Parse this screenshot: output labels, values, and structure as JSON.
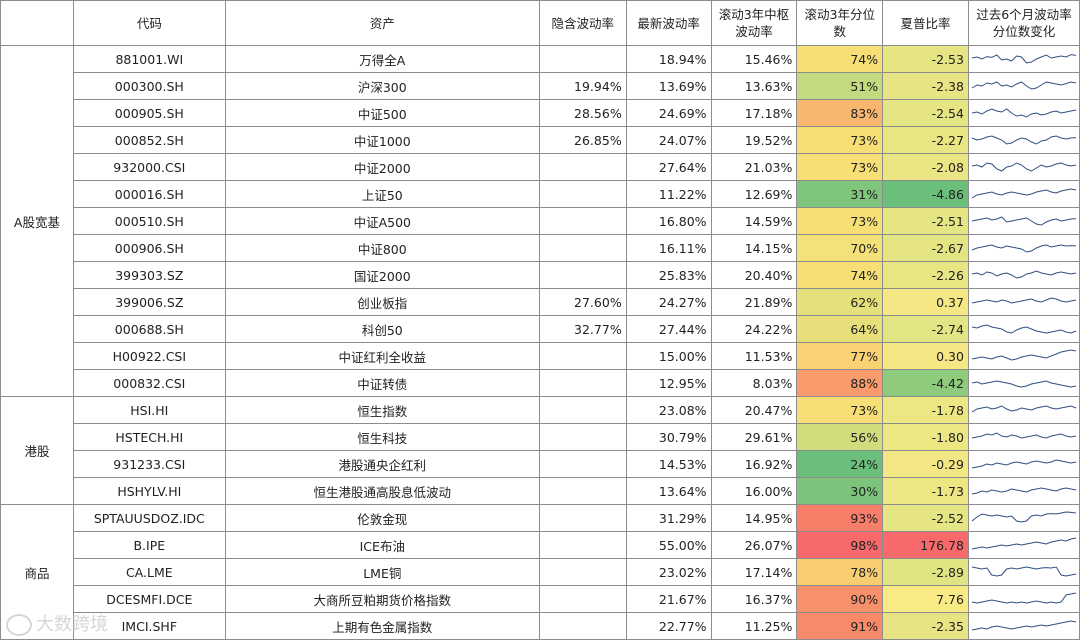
{
  "headers": {
    "group": "",
    "code": "代码",
    "asset": "资产",
    "implied_vol": "隐含波动率",
    "latest_vol": "最新波动率",
    "rolling_center_vol": "滚动3年中枢波动率",
    "rolling_pct": "滚动3年分位数",
    "sharpe": "夏普比率",
    "past6m": "过去6个月波动率分位数变化"
  },
  "groups": [
    {
      "label": "A股宽基",
      "count": 13
    },
    {
      "label": "港股",
      "count": 4
    },
    {
      "label": "商品",
      "count": 5
    }
  ],
  "rows": [
    {
      "code": "881001.WI",
      "asset": "万得全A",
      "implied": "",
      "latest": "18.94%",
      "center": "15.46%",
      "pct": "74%",
      "pct_color": "#f7df76",
      "sharpe": "-2.53",
      "sharpe_color": "#e6e583"
    },
    {
      "code": "000300.SH",
      "asset": "沪深300",
      "implied": "19.94%",
      "latest": "13.69%",
      "center": "13.63%",
      "pct": "51%",
      "pct_color": "#c4da7e",
      "sharpe": "-2.38",
      "sharpe_color": "#e7e583"
    },
    {
      "code": "000905.SH",
      "asset": "中证500",
      "implied": "28.56%",
      "latest": "24.69%",
      "center": "17.18%",
      "pct": "83%",
      "pct_color": "#f9b66e",
      "sharpe": "-2.54",
      "sharpe_color": "#e6e583"
    },
    {
      "code": "000852.SH",
      "asset": "中证1000",
      "implied": "26.85%",
      "latest": "24.07%",
      "center": "19.52%",
      "pct": "73%",
      "pct_color": "#f7df76",
      "sharpe": "-2.27",
      "sharpe_color": "#e8e583"
    },
    {
      "code": "932000.CSI",
      "asset": "中证2000",
      "implied": "",
      "latest": "27.64%",
      "center": "21.03%",
      "pct": "73%",
      "pct_color": "#f7df76",
      "sharpe": "-2.08",
      "sharpe_color": "#eae583"
    },
    {
      "code": "000016.SH",
      "asset": "上证50",
      "implied": "",
      "latest": "11.22%",
      "center": "12.69%",
      "pct": "31%",
      "pct_color": "#7fc57c",
      "sharpe": "-4.86",
      "sharpe_color": "#6abf7b"
    },
    {
      "code": "000510.SH",
      "asset": "中证A500",
      "implied": "",
      "latest": "16.80%",
      "center": "14.59%",
      "pct": "73%",
      "pct_color": "#f7df76",
      "sharpe": "-2.51",
      "sharpe_color": "#e6e583"
    },
    {
      "code": "000906.SH",
      "asset": "中证800",
      "implied": "",
      "latest": "16.11%",
      "center": "14.15%",
      "pct": "70%",
      "pct_color": "#f4e279",
      "sharpe": "-2.67",
      "sharpe_color": "#e4e483"
    },
    {
      "code": "399303.SZ",
      "asset": "国证2000",
      "implied": "",
      "latest": "25.83%",
      "center": "20.40%",
      "pct": "74%",
      "pct_color": "#f7df76",
      "sharpe": "-2.26",
      "sharpe_color": "#e8e583"
    },
    {
      "code": "399006.SZ",
      "asset": "创业板指",
      "implied": "27.60%",
      "latest": "24.27%",
      "center": "21.89%",
      "pct": "62%",
      "pct_color": "#e4e07a",
      "sharpe": "0.37",
      "sharpe_color": "#f5e784"
    },
    {
      "code": "000688.SH",
      "asset": "科创50",
      "implied": "32.77%",
      "latest": "27.44%",
      "center": "24.22%",
      "pct": "64%",
      "pct_color": "#e7e07a",
      "sharpe": "-2.74",
      "sharpe_color": "#e3e483"
    },
    {
      "code": "H00922.CSI",
      "asset": "中证红利全收益",
      "implied": "",
      "latest": "15.00%",
      "center": "11.53%",
      "pct": "77%",
      "pct_color": "#f8d273",
      "sharpe": "0.30",
      "sharpe_color": "#f5e784"
    },
    {
      "code": "000832.CSI",
      "asset": "中证转债",
      "implied": "",
      "latest": "12.95%",
      "center": "8.03%",
      "pct": "88%",
      "pct_color": "#f99b6b",
      "sharpe": "-4.42",
      "sharpe_color": "#8fcb7d"
    },
    {
      "code": "HSI.HI",
      "asset": "恒生指数",
      "implied": "",
      "latest": "23.08%",
      "center": "20.47%",
      "pct": "73%",
      "pct_color": "#f7df76",
      "sharpe": "-1.78",
      "sharpe_color": "#ece683"
    },
    {
      "code": "HSTECH.HI",
      "asset": "恒生科技",
      "implied": "",
      "latest": "30.79%",
      "center": "29.61%",
      "pct": "56%",
      "pct_color": "#d3dc7d",
      "sharpe": "-1.80",
      "sharpe_color": "#ece683"
    },
    {
      "code": "931233.CSI",
      "asset": "港股通央企红利",
      "implied": "",
      "latest": "14.53%",
      "center": "16.92%",
      "pct": "24%",
      "pct_color": "#6abf7b",
      "sharpe": "-0.29",
      "sharpe_color": "#f2e784"
    },
    {
      "code": "HSHYLV.HI",
      "asset": "恒生港股通高股息低波动",
      "implied": "",
      "latest": "13.64%",
      "center": "16.00%",
      "pct": "30%",
      "pct_color": "#7cc47c",
      "sharpe": "-1.73",
      "sharpe_color": "#ece683"
    },
    {
      "code": "SPTAUUSDOZ.IDC",
      "asset": "伦敦金现",
      "implied": "",
      "latest": "31.29%",
      "center": "14.95%",
      "pct": "93%",
      "pct_color": "#f77f69",
      "sharpe": "-2.52",
      "sharpe_color": "#e6e583"
    },
    {
      "code": "B.IPE",
      "asset": "ICE布油",
      "implied": "",
      "latest": "55.00%",
      "center": "26.07%",
      "pct": "98%",
      "pct_color": "#f8696b",
      "sharpe": "176.78",
      "sharpe_color": "#f8696b"
    },
    {
      "code": "CA.LME",
      "asset": "LME铜",
      "implied": "",
      "latest": "23.02%",
      "center": "17.14%",
      "pct": "78%",
      "pct_color": "#f8cd72",
      "sharpe": "-2.89",
      "sharpe_color": "#e1e483"
    },
    {
      "code": "DCESMFI.DCE",
      "asset": "大商所豆粕期货价格指数",
      "implied": "",
      "latest": "21.67%",
      "center": "16.37%",
      "pct": "90%",
      "pct_color": "#f8906b",
      "sharpe": "7.76",
      "sharpe_color": "#f9eb84"
    },
    {
      "code": "IMCI.SHF",
      "asset": "上期有色金属指数",
      "implied": "",
      "latest": "22.77%",
      "center": "11.25%",
      "pct": "91%",
      "pct_color": "#f88a6a",
      "sharpe": "-2.35",
      "sharpe_color": "#e7e583"
    }
  ],
  "sparklines": [
    [
      0.55,
      0.6,
      0.5,
      0.62,
      0.58,
      0.7,
      0.45,
      0.5,
      0.4,
      0.65,
      0.6,
      0.3,
      0.35,
      0.5,
      0.6,
      0.7,
      0.55,
      0.6,
      0.65,
      0.6,
      0.72,
      0.68
    ],
    [
      0.4,
      0.55,
      0.5,
      0.65,
      0.6,
      0.7,
      0.5,
      0.55,
      0.45,
      0.6,
      0.7,
      0.5,
      0.35,
      0.4,
      0.55,
      0.7,
      0.65,
      0.6,
      0.55,
      0.62,
      0.7,
      0.65
    ],
    [
      0.5,
      0.55,
      0.45,
      0.6,
      0.7,
      0.6,
      0.55,
      0.7,
      0.5,
      0.35,
      0.4,
      0.3,
      0.45,
      0.5,
      0.4,
      0.45,
      0.55,
      0.6,
      0.5,
      0.55,
      0.6,
      0.65
    ],
    [
      0.6,
      0.5,
      0.55,
      0.65,
      0.7,
      0.6,
      0.5,
      0.3,
      0.35,
      0.5,
      0.6,
      0.55,
      0.4,
      0.3,
      0.45,
      0.5,
      0.65,
      0.7,
      0.6,
      0.55,
      0.6,
      0.62
    ],
    [
      0.55,
      0.6,
      0.5,
      0.7,
      0.65,
      0.4,
      0.3,
      0.5,
      0.55,
      0.7,
      0.6,
      0.4,
      0.3,
      0.45,
      0.6,
      0.5,
      0.55,
      0.65,
      0.7,
      0.6,
      0.55,
      0.6
    ],
    [
      0.3,
      0.45,
      0.5,
      0.55,
      0.6,
      0.5,
      0.45,
      0.55,
      0.6,
      0.55,
      0.5,
      0.45,
      0.5,
      0.6,
      0.65,
      0.7,
      0.6,
      0.55,
      0.65,
      0.7,
      0.75,
      0.7
    ],
    [
      0.5,
      0.55,
      0.6,
      0.65,
      0.55,
      0.6,
      0.7,
      0.45,
      0.5,
      0.55,
      0.6,
      0.65,
      0.5,
      0.35,
      0.3,
      0.45,
      0.55,
      0.6,
      0.5,
      0.55,
      0.6,
      0.62
    ],
    [
      0.4,
      0.5,
      0.55,
      0.6,
      0.65,
      0.55,
      0.5,
      0.6,
      0.55,
      0.5,
      0.45,
      0.3,
      0.35,
      0.5,
      0.6,
      0.65,
      0.55,
      0.6,
      0.65,
      0.6,
      0.62,
      0.6
    ],
    [
      0.55,
      0.6,
      0.5,
      0.65,
      0.6,
      0.45,
      0.55,
      0.6,
      0.5,
      0.35,
      0.4,
      0.55,
      0.6,
      0.7,
      0.6,
      0.55,
      0.5,
      0.6,
      0.65,
      0.6,
      0.55,
      0.6
    ],
    [
      0.45,
      0.5,
      0.55,
      0.6,
      0.55,
      0.5,
      0.6,
      0.55,
      0.45,
      0.5,
      0.55,
      0.6,
      0.65,
      0.55,
      0.5,
      0.6,
      0.7,
      0.65,
      0.55,
      0.5,
      0.55,
      0.6
    ],
    [
      0.6,
      0.55,
      0.65,
      0.7,
      0.6,
      0.55,
      0.5,
      0.35,
      0.3,
      0.45,
      0.55,
      0.6,
      0.5,
      0.4,
      0.35,
      0.3,
      0.35,
      0.4,
      0.45,
      0.35,
      0.3,
      0.4
    ],
    [
      0.35,
      0.4,
      0.45,
      0.4,
      0.35,
      0.45,
      0.5,
      0.4,
      0.3,
      0.35,
      0.45,
      0.5,
      0.55,
      0.5,
      0.45,
      0.4,
      0.5,
      0.6,
      0.7,
      0.75,
      0.8,
      0.75
    ],
    [
      0.5,
      0.55,
      0.45,
      0.5,
      0.55,
      0.6,
      0.55,
      0.5,
      0.45,
      0.35,
      0.3,
      0.35,
      0.45,
      0.5,
      0.55,
      0.6,
      0.5,
      0.45,
      0.4,
      0.35,
      0.3,
      0.35
    ],
    [
      0.4,
      0.55,
      0.6,
      0.65,
      0.55,
      0.6,
      0.7,
      0.55,
      0.45,
      0.5,
      0.6,
      0.55,
      0.5,
      0.6,
      0.65,
      0.7,
      0.6,
      0.55,
      0.6,
      0.65,
      0.7,
      0.6
    ],
    [
      0.45,
      0.5,
      0.55,
      0.65,
      0.6,
      0.7,
      0.55,
      0.5,
      0.6,
      0.55,
      0.45,
      0.5,
      0.55,
      0.6,
      0.5,
      0.45,
      0.55,
      0.6,
      0.65,
      0.55,
      0.5,
      0.55
    ],
    [
      0.3,
      0.35,
      0.4,
      0.5,
      0.45,
      0.55,
      0.5,
      0.45,
      0.55,
      0.6,
      0.55,
      0.5,
      0.6,
      0.65,
      0.6,
      0.55,
      0.6,
      0.7,
      0.65,
      0.6,
      0.55,
      0.6
    ],
    [
      0.35,
      0.4,
      0.5,
      0.45,
      0.55,
      0.5,
      0.45,
      0.5,
      0.6,
      0.55,
      0.5,
      0.45,
      0.55,
      0.6,
      0.65,
      0.6,
      0.55,
      0.5,
      0.6,
      0.65,
      0.6,
      0.55
    ],
    [
      0.35,
      0.55,
      0.7,
      0.65,
      0.6,
      0.65,
      0.6,
      0.55,
      0.6,
      0.35,
      0.3,
      0.35,
      0.6,
      0.65,
      0.6,
      0.7,
      0.72,
      0.7,
      0.75,
      0.8,
      0.78,
      0.75
    ],
    [
      0.3,
      0.35,
      0.4,
      0.35,
      0.4,
      0.45,
      0.5,
      0.45,
      0.5,
      0.55,
      0.5,
      0.55,
      0.6,
      0.65,
      0.6,
      0.55,
      0.65,
      0.7,
      0.75,
      0.7,
      0.8,
      0.85
    ],
    [
      0.75,
      0.7,
      0.65,
      0.7,
      0.35,
      0.3,
      0.35,
      0.65,
      0.7,
      0.65,
      0.7,
      0.75,
      0.7,
      0.65,
      0.7,
      0.72,
      0.7,
      0.75,
      0.35,
      0.3,
      0.35,
      0.4
    ],
    [
      0.35,
      0.3,
      0.35,
      0.4,
      0.45,
      0.4,
      0.35,
      0.3,
      0.35,
      0.3,
      0.35,
      0.3,
      0.35,
      0.4,
      0.35,
      0.3,
      0.35,
      0.3,
      0.35,
      0.7,
      0.75,
      0.8
    ],
    [
      0.3,
      0.35,
      0.4,
      0.35,
      0.45,
      0.5,
      0.45,
      0.4,
      0.35,
      0.4,
      0.45,
      0.5,
      0.45,
      0.5,
      0.55,
      0.5,
      0.55,
      0.6,
      0.65,
      0.7,
      0.75,
      0.7
    ]
  ],
  "watermark": "大数跨境"
}
